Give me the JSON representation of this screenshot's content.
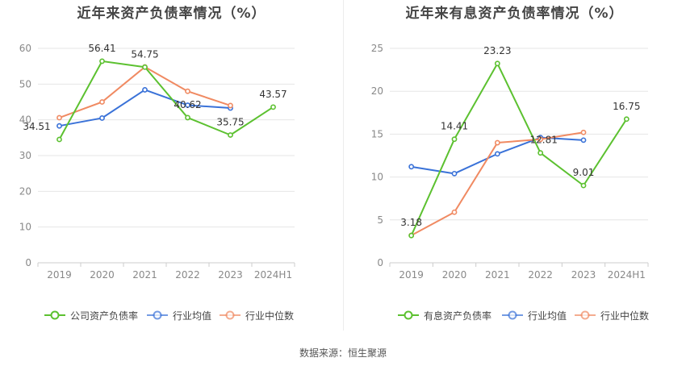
{
  "footer": {
    "source": "数据来源：恒生聚源"
  },
  "colors": {
    "company": "#5cc130",
    "avg": "#3a72d8",
    "median": "#f08a62",
    "grid": "#e6e6e6",
    "axis_text": "#888888"
  },
  "chart_data": [
    {
      "type": "line",
      "title": "近年来资产负债率情况（%）",
      "categories": [
        "2019",
        "2020",
        "2021",
        "2022",
        "2023",
        "2024H1"
      ],
      "ylim": [
        0,
        60
      ],
      "yticks": [
        0,
        10,
        20,
        30,
        40,
        50,
        60
      ],
      "grid": true,
      "legend_position": "bottom",
      "series": [
        {
          "name": "公司资产负债率",
          "color": "#5cc130",
          "values": [
            34.51,
            56.41,
            54.75,
            40.62,
            35.75,
            43.57
          ],
          "labels": [
            "34.51",
            "56.41",
            "54.75",
            "40.62",
            "35.75",
            "43.57"
          ]
        },
        {
          "name": "行业均值",
          "color": "#3a72d8",
          "values": [
            38.3,
            40.5,
            48.4,
            44.1,
            43.3,
            null
          ]
        },
        {
          "name": "行业中位数",
          "color": "#f08a62",
          "values": [
            40.6,
            45.0,
            54.8,
            48.0,
            44.0,
            null
          ]
        }
      ]
    },
    {
      "type": "line",
      "title": "近年来有息资产负债率情况（%）",
      "categories": [
        "2019",
        "2020",
        "2021",
        "2022",
        "2023",
        "2024H1"
      ],
      "ylim": [
        0,
        25
      ],
      "yticks": [
        0,
        5,
        10,
        15,
        20,
        25
      ],
      "grid": true,
      "legend_position": "bottom",
      "series": [
        {
          "name": "有息资产负债率",
          "color": "#5cc130",
          "values": [
            3.18,
            14.41,
            23.23,
            12.81,
            9.01,
            16.75
          ],
          "labels": [
            "3.18",
            "14.41",
            "23.23",
            "12.81",
            "9.01",
            "16.75"
          ]
        },
        {
          "name": "行业均值",
          "color": "#3a72d8",
          "values": [
            11.2,
            10.4,
            12.7,
            14.6,
            14.3,
            null
          ]
        },
        {
          "name": "行业中位数",
          "color": "#f08a62",
          "values": [
            3.2,
            5.9,
            14.0,
            14.4,
            15.2,
            null
          ]
        }
      ]
    }
  ]
}
